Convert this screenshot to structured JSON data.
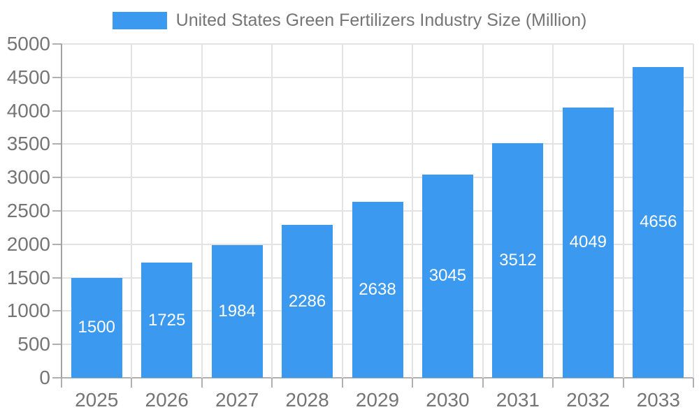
{
  "legend": {
    "title": "United States Green Fertilizers Industry Size (Million)"
  },
  "chart_data": {
    "type": "bar",
    "title": "United States Green Fertilizers Industry Size (Million)",
    "series_name": "United States Green Fertilizers Industry Size (Million)",
    "categories": [
      "2025",
      "2026",
      "2027",
      "2028",
      "2029",
      "2030",
      "2031",
      "2032",
      "2033"
    ],
    "values": [
      1500,
      1725,
      1984,
      2286,
      2638,
      3045,
      3512,
      4049,
      4656
    ],
    "xlabel": "",
    "ylabel": "",
    "ylim": [
      0,
      5000
    ],
    "ytick_step": 500,
    "yticks": [
      0,
      500,
      1000,
      1500,
      2000,
      2500,
      3000,
      3500,
      4000,
      4500,
      5000
    ],
    "grid": true,
    "legend_position": "top-center",
    "bar_label_position": "inside-center",
    "colors": {
      "bar": "#3B99EF",
      "bar_label": "#FFFFFF",
      "axis_text": "#757575",
      "gridline": "#E3E3E3",
      "axis_line": "#A3A3A3",
      "tick": "#B0B0B0",
      "background": "#FFFFFF"
    }
  }
}
